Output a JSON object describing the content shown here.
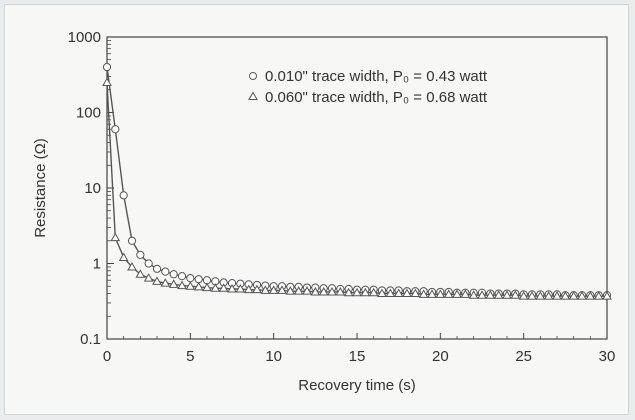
{
  "chart_data": {
    "type": "line",
    "title": "",
    "xlabel": "Recovery time (s)",
    "ylabel": "Resistance (Ω)",
    "xlim": [
      0,
      30
    ],
    "ylim": [
      0.1,
      1000
    ],
    "y_scale": "log",
    "x_ticks": [
      "0",
      "5",
      "10",
      "15",
      "20",
      "25",
      "30"
    ],
    "y_ticks": [
      "0.1",
      "1",
      "10",
      "100",
      "1000"
    ],
    "legend_position": "top-right",
    "grid": false,
    "series": [
      {
        "name": "0.010\" trace width, P₀ = 0.43 watt",
        "marker": "circle",
        "color": "#555555",
        "x": [
          0,
          0.5,
          1,
          1.5,
          2,
          2.5,
          3,
          3.5,
          4,
          4.5,
          5,
          5.5,
          6,
          6.5,
          7,
          7.5,
          8,
          8.5,
          9,
          9.5,
          10,
          10.5,
          11,
          11.5,
          12,
          12.5,
          13,
          13.5,
          14,
          14.5,
          15,
          15.5,
          16,
          16.5,
          17,
          17.5,
          18,
          18.5,
          19,
          19.5,
          20,
          20.5,
          21,
          21.5,
          22,
          22.5,
          23,
          23.5,
          24,
          24.5,
          25,
          25.5,
          26,
          26.5,
          27,
          27.5,
          28,
          28.5,
          29,
          29.5,
          30
        ],
        "y": [
          400,
          60,
          8,
          2,
          1.3,
          1.0,
          0.85,
          0.78,
          0.72,
          0.68,
          0.64,
          0.62,
          0.6,
          0.58,
          0.56,
          0.55,
          0.54,
          0.53,
          0.52,
          0.51,
          0.5,
          0.5,
          0.49,
          0.49,
          0.48,
          0.48,
          0.47,
          0.47,
          0.46,
          0.46,
          0.45,
          0.45,
          0.45,
          0.44,
          0.44,
          0.44,
          0.43,
          0.43,
          0.43,
          0.42,
          0.42,
          0.42,
          0.41,
          0.41,
          0.41,
          0.41,
          0.4,
          0.4,
          0.4,
          0.4,
          0.39,
          0.39,
          0.39,
          0.39,
          0.39,
          0.38,
          0.38,
          0.38,
          0.38,
          0.38,
          0.38
        ]
      },
      {
        "name": "0.060\" trace width, P₀ = 0.68 watt",
        "marker": "triangle",
        "color": "#555555",
        "x": [
          0,
          0.5,
          1,
          1.5,
          2,
          2.5,
          3,
          3.5,
          4,
          4.5,
          5,
          5.5,
          6,
          6.5,
          7,
          7.5,
          8,
          8.5,
          9,
          9.5,
          10,
          10.5,
          11,
          11.5,
          12,
          12.5,
          13,
          13.5,
          14,
          14.5,
          15,
          15.5,
          16,
          16.5,
          17,
          17.5,
          18,
          18.5,
          19,
          19.5,
          20,
          20.5,
          21,
          21.5,
          22,
          22.5,
          23,
          23.5,
          24,
          24.5,
          25,
          25.5,
          26,
          26.5,
          27,
          27.5,
          28,
          28.5,
          29,
          29.5,
          30
        ],
        "y": [
          250,
          2.2,
          1.2,
          0.9,
          0.72,
          0.64,
          0.58,
          0.55,
          0.53,
          0.51,
          0.5,
          0.49,
          0.48,
          0.47,
          0.47,
          0.46,
          0.46,
          0.45,
          0.45,
          0.44,
          0.44,
          0.44,
          0.43,
          0.43,
          0.43,
          0.42,
          0.42,
          0.42,
          0.42,
          0.41,
          0.41,
          0.41,
          0.41,
          0.4,
          0.4,
          0.4,
          0.4,
          0.4,
          0.39,
          0.39,
          0.39,
          0.39,
          0.39,
          0.39,
          0.38,
          0.38,
          0.38,
          0.38,
          0.38,
          0.38,
          0.37,
          0.37,
          0.37,
          0.37,
          0.37,
          0.37,
          0.37,
          0.37,
          0.37,
          0.37,
          0.37
        ]
      }
    ]
  }
}
